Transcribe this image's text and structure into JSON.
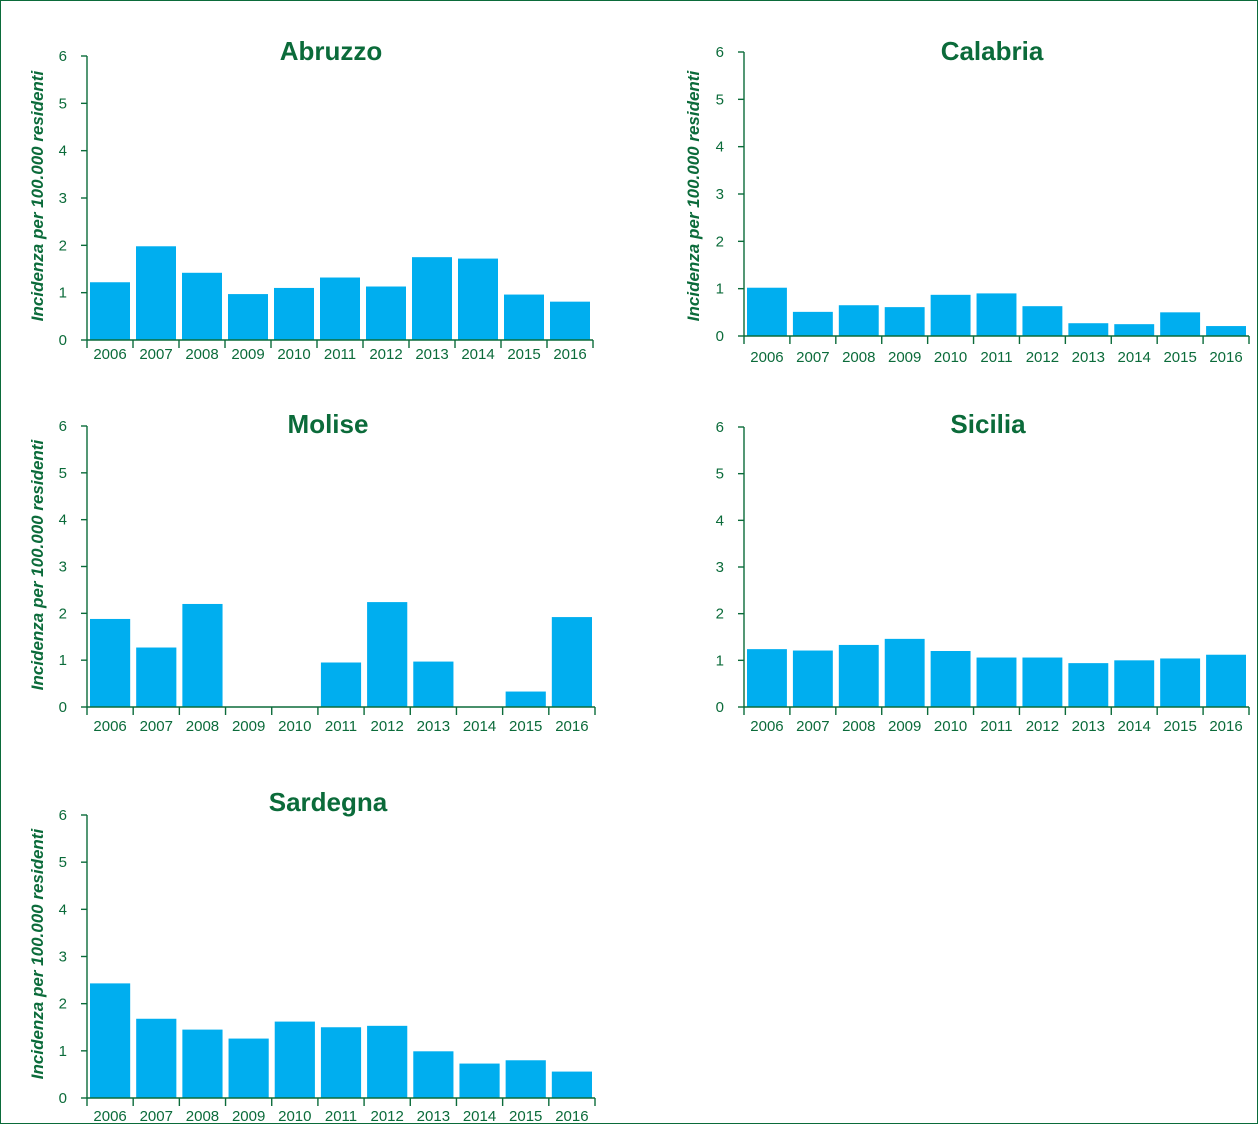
{
  "chart_data": [
    {
      "type": "bar",
      "title": "Abruzzo",
      "ylabel": "Incidenza per 100.000 residenti",
      "categories": [
        "2006",
        "2007",
        "2008",
        "2009",
        "2010",
        "2011",
        "2012",
        "2013",
        "2014",
        "2015",
        "2016"
      ],
      "values": [
        1.22,
        1.98,
        1.42,
        0.97,
        1.1,
        1.32,
        1.13,
        1.75,
        1.72,
        0.96,
        0.81
      ],
      "ylim": [
        0,
        6
      ],
      "yticks": [
        "0",
        "1",
        "2",
        "3",
        "4",
        "5",
        "6"
      ],
      "colors": {
        "bar": "#00aeef",
        "axis": "#0b6b3a",
        "text": "#0b6b3a"
      }
    },
    {
      "type": "bar",
      "title": "Calabria",
      "ylabel": "Incidenza per 100.000 residenti",
      "categories": [
        "2006",
        "2007",
        "2008",
        "2009",
        "2010",
        "2011",
        "2012",
        "2013",
        "2014",
        "2015",
        "2016"
      ],
      "values": [
        1.02,
        0.51,
        0.65,
        0.61,
        0.87,
        0.9,
        0.63,
        0.27,
        0.25,
        0.5,
        0.21
      ],
      "ylim": [
        0,
        6
      ],
      "yticks": [
        "0",
        "1",
        "2",
        "3",
        "4",
        "5",
        "6"
      ],
      "colors": {
        "bar": "#00aeef",
        "axis": "#0b6b3a",
        "text": "#0b6b3a"
      }
    },
    {
      "type": "bar",
      "title": "Molise",
      "ylabel": "Incidenza per 100.000 residenti",
      "categories": [
        "2006",
        "2007",
        "2008",
        "2009",
        "2010",
        "2011",
        "2012",
        "2013",
        "2014",
        "2015",
        "2016"
      ],
      "values": [
        1.88,
        1.27,
        2.2,
        0,
        0,
        0.95,
        2.24,
        0.97,
        0,
        0.33,
        1.92
      ],
      "ylim": [
        0,
        6
      ],
      "yticks": [
        "0",
        "1",
        "2",
        "3",
        "4",
        "5",
        "6"
      ],
      "colors": {
        "bar": "#00aeef",
        "axis": "#0b6b3a",
        "text": "#0b6b3a"
      }
    },
    {
      "type": "bar",
      "title": "Sicilia",
      "ylabel": "",
      "categories": [
        "2006",
        "2007",
        "2008",
        "2009",
        "2010",
        "2011",
        "2012",
        "2013",
        "2014",
        "2015",
        "2016"
      ],
      "values": [
        1.24,
        1.21,
        1.33,
        1.46,
        1.2,
        1.06,
        1.06,
        0.94,
        1.0,
        1.04,
        1.12
      ],
      "ylim": [
        0,
        6
      ],
      "yticks": [
        "0",
        "1",
        "2",
        "3",
        "4",
        "5",
        "6"
      ],
      "colors": {
        "bar": "#00aeef",
        "axis": "#0b6b3a",
        "text": "#0b6b3a"
      }
    },
    {
      "type": "bar",
      "title": "Sardegna",
      "ylabel": "Incidenza per 100.000 residenti",
      "categories": [
        "2006",
        "2007",
        "2008",
        "2009",
        "2010",
        "2011",
        "2012",
        "2013",
        "2014",
        "2015",
        "2016"
      ],
      "values": [
        2.43,
        1.68,
        1.45,
        1.26,
        1.62,
        1.5,
        1.53,
        0.99,
        0.73,
        0.8,
        0.56
      ],
      "ylim": [
        0,
        6
      ],
      "yticks": [
        "0",
        "1",
        "2",
        "3",
        "4",
        "5",
        "6"
      ],
      "colors": {
        "bar": "#00aeef",
        "axis": "#0b6b3a",
        "text": "#0b6b3a"
      }
    }
  ]
}
